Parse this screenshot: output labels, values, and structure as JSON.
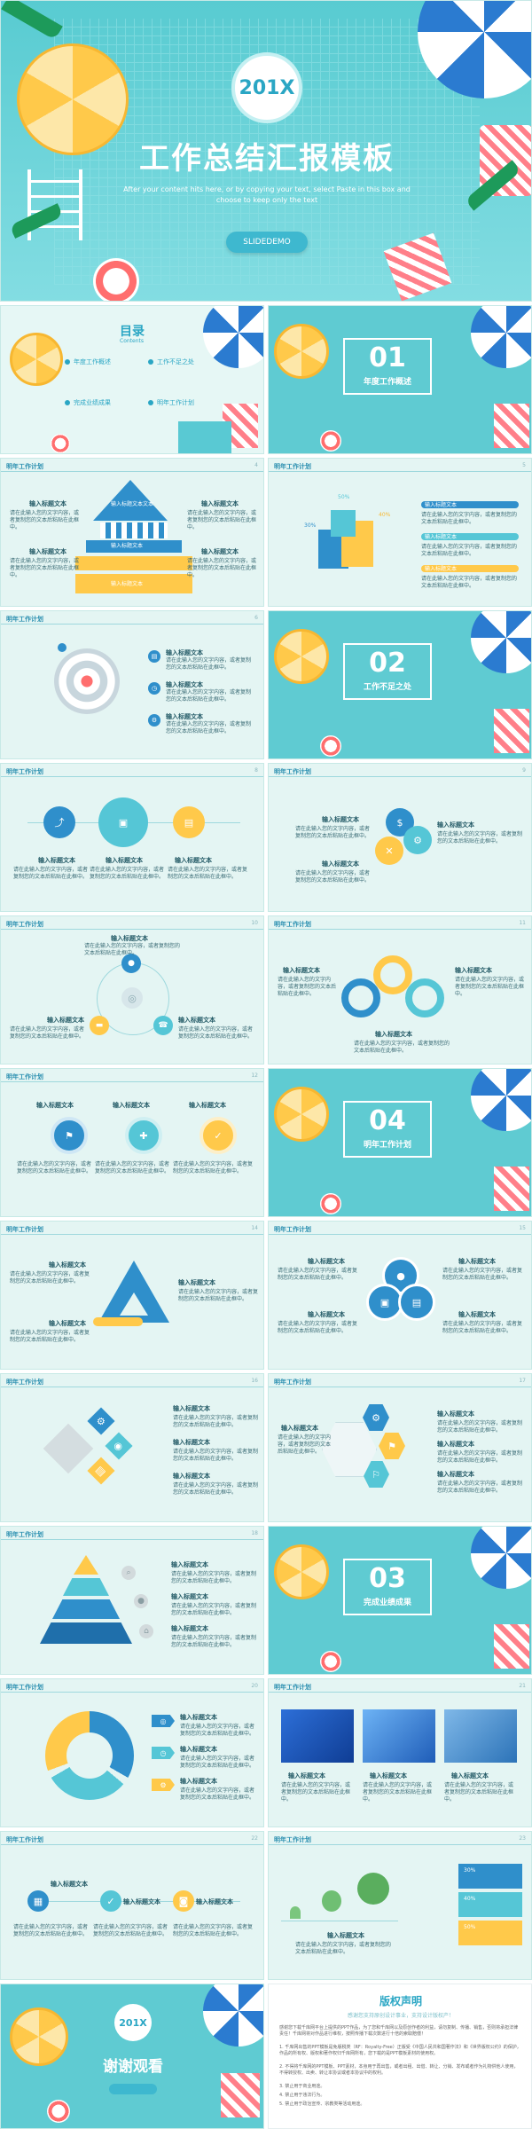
{
  "colors": {
    "primary": "#55c6d6",
    "blue": "#2f8fcb",
    "yellow": "#ffc94a",
    "light": "#e4f5f3",
    "text": "#2a8fb0"
  },
  "cover": {
    "year": "201X",
    "title": "工作总结汇报模板",
    "subtitle1": "After your content hits here, or by copying your text, select Paste in this box and",
    "subtitle2": "choose to keep only the text",
    "button": "SLIDEDEMO"
  },
  "toc": {
    "title": "目录",
    "subtitle": "Contents",
    "items": [
      "年度工作概述",
      "工作不足之处",
      "完成业绩成果",
      "明年工作计划"
    ]
  },
  "sections": {
    "s1": {
      "num": "01",
      "title": "年度工作概述"
    },
    "s2": {
      "num": "02",
      "title": "工作不足之处"
    },
    "s3": {
      "num": "03",
      "title": "完成业绩成果"
    },
    "s4": {
      "num": "04",
      "title": "明年工作计划"
    }
  },
  "header": "明年工作计划",
  "page_numbers": [
    "4",
    "5",
    "6",
    "8",
    "9",
    "10",
    "11",
    "12",
    "14",
    "15",
    "16",
    "17",
    "18",
    "20",
    "21",
    "22",
    "23"
  ],
  "text": {
    "label": "输入标题文本",
    "body": "请在此输入您的文字内容，或者复制您的文本后粘贴在此框中。",
    "pct1": "30%",
    "pct2": "40%",
    "pct3": "50%",
    "pyramid_top": "输入标题文本文本"
  },
  "thanks": {
    "year": "201X",
    "title": "谢谢观看"
  },
  "copyright": {
    "title": "版权声明",
    "subtitle": "感谢您支持原创设计事业，支持设计版权产！",
    "paragraphs": [
      "感谢您下载千库网平台上提供的PPT作品，为了您和千库网以及原创作者的利益，请勿复制、传播、销售，否则将承担法律责任！千库网将对作品进行维权，按照传播下载次数进行十倍的索取赔偿！",
      "1. 千库网出售的PPT模板是免版税类（RF：Royalty-Free）正版受《中国人民共和国著作法》和《世界版权公约》的保护，作品的所有权、版权和著作权归千库网所有，您下载的是PPT模板素材的使用权。",
      "2. 不得将千库网的PPT模板、PPT素材，本身用于再出售，或者出租、出借、转让、分销、发布或者作为礼物供他人使用，不得转授权、出卖、转让本协议或者本协议中的权利。",
      "3. 禁止用于商业用途。",
      "4. 禁止用于违法行为。",
      "5. 禁止用于政治宣传、宗教类等活动用途。"
    ]
  }
}
